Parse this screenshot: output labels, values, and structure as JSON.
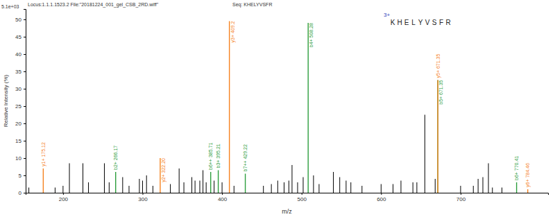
{
  "chart_data": {
    "type": "stem",
    "title": "Locus:1.1.1.1523.2 File:\"20181224_001_gel_CSB_2RD.wiff\"",
    "subtitle": "Seq: KHELYVSFR",
    "x_label": "m/z",
    "y_label": "Relative Intensity (%)",
    "xlim": [
      153,
      810
    ],
    "ylim": [
      0,
      53
    ],
    "xticks": [
      200,
      300,
      400,
      500,
      600,
      700
    ],
    "yticks": [
      0,
      5,
      10,
      15,
      20,
      25,
      30,
      35,
      40,
      45,
      50
    ],
    "grid": false,
    "annotations": [
      "5.1e+03",
      "3+",
      "KHELYVSFR"
    ],
    "series": [
      {
        "color": "#000000",
        "x": [
          157,
          190,
          200,
          208,
          225,
          232,
          252,
          258,
          275,
          283,
          296,
          300,
          305,
          313,
          335,
          346,
          352,
          362,
          366,
          372,
          376,
          380,
          390,
          400,
          415,
          452,
          462,
          470,
          478,
          484,
          488,
          495,
          502,
          515,
          522,
          540,
          548,
          556,
          562,
          576,
          600,
          615,
          625,
          640,
          645,
          655,
          668,
          700,
          716,
          722,
          728,
          735,
          740,
          752
        ],
        "values": [
          1.5,
          1.5,
          2,
          8.5,
          8.5,
          3,
          8.5,
          3,
          4.5,
          2,
          4,
          3.5,
          5,
          2,
          2.5,
          7,
          3,
          4.5,
          3.5,
          3.5,
          6.5,
          3,
          3.5,
          3,
          2,
          2,
          2.5,
          3.5,
          3,
          3.5,
          8,
          3,
          4.5,
          5,
          2.5,
          6,
          4.5,
          3.5,
          3,
          2,
          2.5,
          2.5,
          3.5,
          3,
          3,
          22.5,
          4,
          2,
          2,
          4,
          4.5,
          8.5,
          1.5,
          1.5
        ]
      },
      {
        "color": "#2e9e3e",
        "x": [
          266.17,
          385.71,
          395.21,
          429.22,
          508.28,
          671.35,
          770.41
        ],
        "values": [
          6,
          6,
          6.5,
          5.5,
          49,
          32.5,
          3
        ],
        "labels": [
          "b2+ 266.17",
          "b6++ 385.71",
          "b3+ 395.21",
          "b7++ 429.22",
          "b4+ 508.28",
          "b5+ 671.35",
          "b6+ 770.41"
        ]
      },
      {
        "color": "#f5821f",
        "x": [
          175.12,
          322.2,
          409.2,
          671.35,
          784.46
        ],
        "values": [
          7,
          10,
          49.5,
          32.5,
          1
        ],
        "labels": [
          "y1+ 175.12",
          "y2+ 322.20",
          "y3+ 409.2",
          "y5+ 671.35",
          "y6+ 784.46"
        ]
      }
    ]
  }
}
